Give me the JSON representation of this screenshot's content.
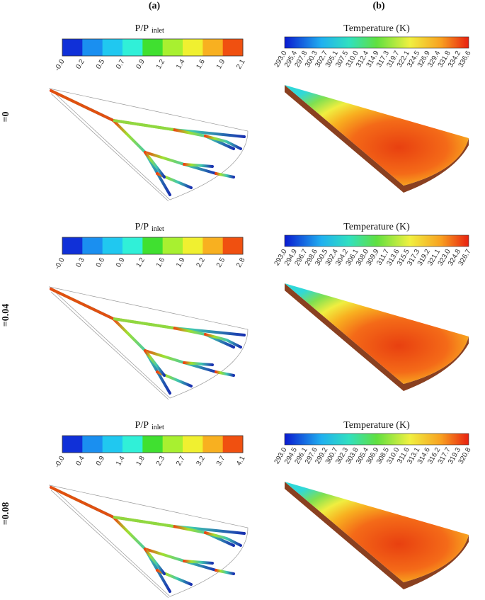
{
  "column_labels": [
    "(a)",
    "(b)"
  ],
  "rows": [
    {
      "label": "=0",
      "pressure_title": "P/P",
      "pressure_title_sub": "inlet",
      "pressure_ticks": [
        "-0.0",
        "0.2",
        "0.5",
        "0.7",
        "0.9",
        "1.2",
        "1.4",
        "1.6",
        "1.9",
        "2.1"
      ],
      "temperature_title": "Temperature (K)",
      "temperature_ticks": [
        "293.0",
        "295.4",
        "297.8",
        "300.3",
        "302.7",
        "305.1",
        "307.5",
        "310.0",
        "312.4",
        "314.9",
        "317.3",
        "319.7",
        "322.1",
        "324.5",
        "326.9",
        "329.4",
        "331.8",
        "334.2",
        "336.6"
      ]
    },
    {
      "label": "=0.04",
      "pressure_title": "P/P",
      "pressure_title_sub": "inlet",
      "pressure_ticks": [
        "-0.0",
        "0.3",
        "0.6",
        "0.9",
        "1.2",
        "1.6",
        "1.9",
        "2.2",
        "2.5",
        "2.8"
      ],
      "temperature_title": "Temperature (K)",
      "temperature_ticks": [
        "293.0",
        "294.9",
        "296.7",
        "298.6",
        "300.5",
        "302.4",
        "304.2",
        "306.1",
        "308.0",
        "309.9",
        "311.7",
        "313.6",
        "315.5",
        "317.3",
        "319.2",
        "321.1",
        "323.0",
        "324.8",
        "326.7"
      ]
    },
    {
      "label": "=0.08",
      "pressure_title": "P/P",
      "pressure_title_sub": "inlet",
      "pressure_ticks": [
        "-0.0",
        "0.4",
        "0.9",
        "1.4",
        "1.8",
        "2.3",
        "2.7",
        "3.2",
        "3.7",
        "4.1"
      ],
      "temperature_title": "Temperature (K)",
      "temperature_ticks": [
        "293.0",
        "294.5",
        "296.1",
        "297.6",
        "299.2",
        "300.7",
        "302.3",
        "303.8",
        "305.4",
        "306.9",
        "308.5",
        "310.0",
        "311.6",
        "313.1",
        "314.6",
        "316.2",
        "317.7",
        "319.3",
        "320.8"
      ]
    }
  ]
}
